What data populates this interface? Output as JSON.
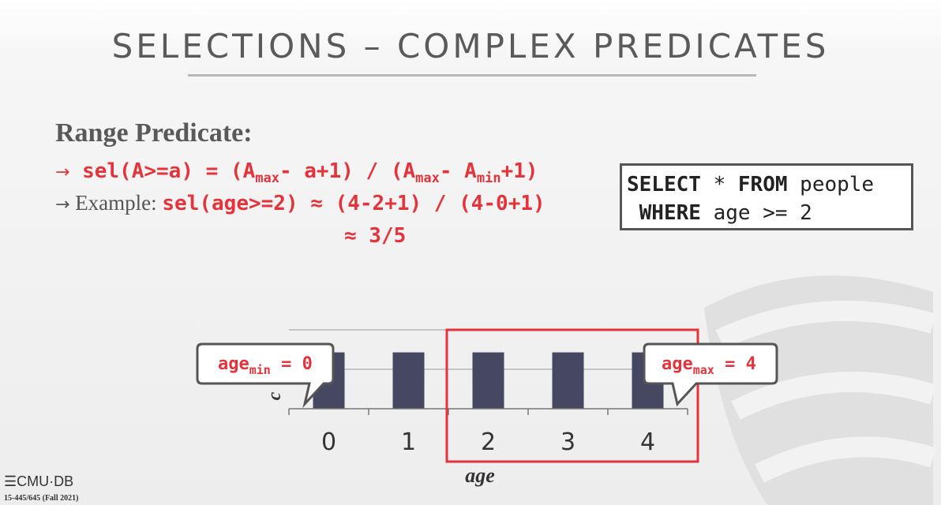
{
  "slide": {
    "title": "SELECTIONS – COMPLEX PREDICATES",
    "heading": "Range Predicate:",
    "formula": {
      "lhs": "sel(A>=a) = (A",
      "sub1": "max",
      "mid1": "- a+1) / (A",
      "sub2": "max",
      "mid2": "- A",
      "sub3": "min",
      "end": "+1)"
    },
    "example_label": "Example:",
    "example_formula": "sel(age>=2) ≈ (4-2+1) / (4-0+1)",
    "result": "≈ 3/5",
    "sql": {
      "kw1": "SELECT",
      "star": " * ",
      "kw2": "FROM",
      "table": " people",
      "kw3": "WHERE",
      "cond": " age >= 2"
    }
  },
  "chart_data": {
    "type": "bar",
    "categories": [
      "0",
      "1",
      "2",
      "3",
      "4"
    ],
    "values": [
      1,
      1,
      1,
      1,
      1
    ],
    "xlabel": "age",
    "ylabel": "c",
    "highlight_range": [
      "2",
      "4"
    ],
    "colors": {
      "bar": "#464862",
      "highlight": "#e4333a"
    }
  },
  "callouts": {
    "min": {
      "text": "age",
      "sub": "min",
      "value": " = 0"
    },
    "max": {
      "text": "age",
      "sub": "max",
      "value": " = 4"
    }
  },
  "footer": {
    "logo": "CMU·DB",
    "course": "15-445/645 (Fall 2021)"
  }
}
